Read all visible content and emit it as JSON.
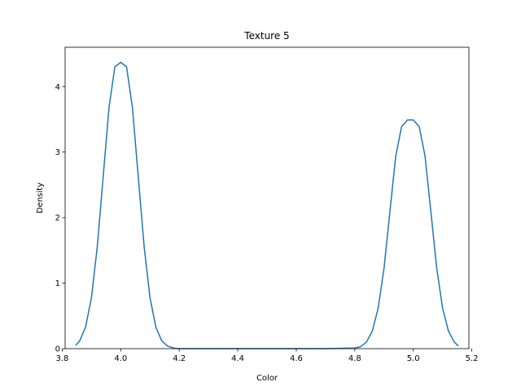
{
  "chart_data": {
    "type": "line",
    "title": "Texture 5",
    "xlabel": "Color",
    "ylabel": "Density",
    "xlim": [
      3.81,
      5.19
    ],
    "ylim": [
      0,
      4.6
    ],
    "xticks": [
      3.8,
      4.0,
      4.2,
      4.4,
      4.6,
      4.8,
      5.0,
      5.2
    ],
    "xtick_labels": [
      "3.8",
      "4.0",
      "4.2",
      "4.4",
      "4.6",
      "4.8",
      "5.0",
      "5.2"
    ],
    "yticks": [
      0,
      1,
      2,
      3,
      4
    ],
    "ytick_labels": [
      "0",
      "1",
      "2",
      "3",
      "4"
    ],
    "grid": false,
    "line_color": "#1f77b4",
    "series": [
      {
        "x": [
          3.846,
          3.86,
          3.88,
          3.9,
          3.92,
          3.94,
          3.96,
          3.98,
          4.0,
          4.02,
          4.04,
          4.06,
          4.08,
          4.1,
          4.12,
          4.14,
          4.16,
          4.18,
          4.2,
          4.3,
          4.4,
          4.5,
          4.6,
          4.7,
          4.8,
          4.82,
          4.84,
          4.86,
          4.88,
          4.9,
          4.92,
          4.94,
          4.96,
          4.98,
          5.0,
          5.02,
          5.04,
          5.06,
          5.08,
          5.1,
          5.12,
          5.14,
          5.154
        ],
        "y": [
          0.05,
          0.12,
          0.33,
          0.78,
          1.56,
          2.62,
          3.68,
          4.3,
          4.37,
          4.3,
          3.68,
          2.62,
          1.56,
          0.78,
          0.33,
          0.12,
          0.04,
          0.01,
          0.0,
          0.0,
          0.0,
          0.0,
          0.0,
          0.0,
          0.01,
          0.03,
          0.1,
          0.27,
          0.62,
          1.23,
          2.09,
          2.94,
          3.39,
          3.49,
          3.49,
          3.39,
          2.94,
          2.09,
          1.23,
          0.62,
          0.27,
          0.1,
          0.04
        ]
      }
    ]
  }
}
